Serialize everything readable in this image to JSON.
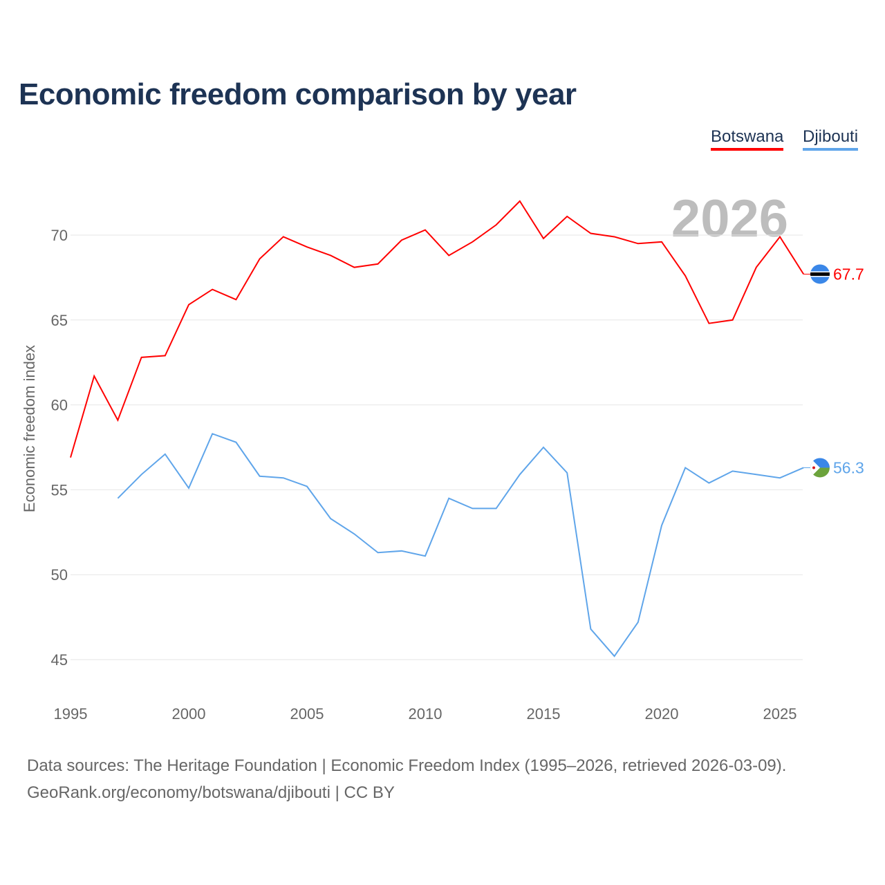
{
  "title": "Economic freedom comparison by year",
  "year_label": "2026",
  "footer": {
    "line1": "Data sources: The Heritage Foundation | Economic Freedom Index (1995–2026, retrieved 2026-03-09).",
    "line2": "GeoRank.org/economy/botswana/djibouti | CC BY"
  },
  "chart_data": {
    "type": "line",
    "title": "Economic freedom comparison by year",
    "xlabel": "",
    "ylabel": "Economic freedom index",
    "xlim": [
      1995,
      2026
    ],
    "ylim": [
      43,
      73
    ],
    "xticks": [
      1995,
      2000,
      2005,
      2010,
      2015,
      2020,
      2025
    ],
    "yticks": [
      45,
      50,
      55,
      60,
      65,
      70
    ],
    "grid": true,
    "legend": "top-right",
    "series": [
      {
        "name": "Botswana",
        "color": "#ff0000",
        "end_label": "67.7",
        "x": [
          1995,
          1996,
          1997,
          1998,
          1999,
          2000,
          2001,
          2002,
          2003,
          2004,
          2005,
          2006,
          2007,
          2008,
          2009,
          2010,
          2011,
          2012,
          2013,
          2014,
          2015,
          2016,
          2017,
          2018,
          2019,
          2020,
          2021,
          2022,
          2023,
          2024,
          2025,
          2026
        ],
        "values": [
          56.9,
          61.7,
          59.1,
          62.8,
          62.9,
          65.9,
          66.8,
          66.2,
          68.6,
          69.9,
          69.3,
          68.8,
          68.1,
          68.3,
          69.7,
          70.3,
          68.8,
          69.6,
          70.6,
          72.0,
          69.8,
          71.1,
          70.1,
          69.9,
          69.5,
          69.6,
          67.6,
          64.8,
          65.0,
          68.1,
          69.9,
          67.7
        ]
      },
      {
        "name": "Djibouti",
        "color": "#5fa5ea",
        "end_label": "56.3",
        "x": [
          1997,
          1998,
          1999,
          2000,
          2001,
          2002,
          2003,
          2004,
          2005,
          2006,
          2007,
          2008,
          2009,
          2010,
          2011,
          2012,
          2013,
          2014,
          2015,
          2016,
          2017,
          2018,
          2019,
          2020,
          2021,
          2022,
          2023,
          2024,
          2025,
          2026
        ],
        "values": [
          54.5,
          55.9,
          57.1,
          55.1,
          58.3,
          57.8,
          55.8,
          55.7,
          55.2,
          53.3,
          52.4,
          51.3,
          51.4,
          51.1,
          54.5,
          53.9,
          53.9,
          55.9,
          57.5,
          56.0,
          46.8,
          45.2,
          47.2,
          52.9,
          56.3,
          55.4,
          56.1,
          55.9,
          55.7,
          56.3
        ]
      }
    ]
  }
}
